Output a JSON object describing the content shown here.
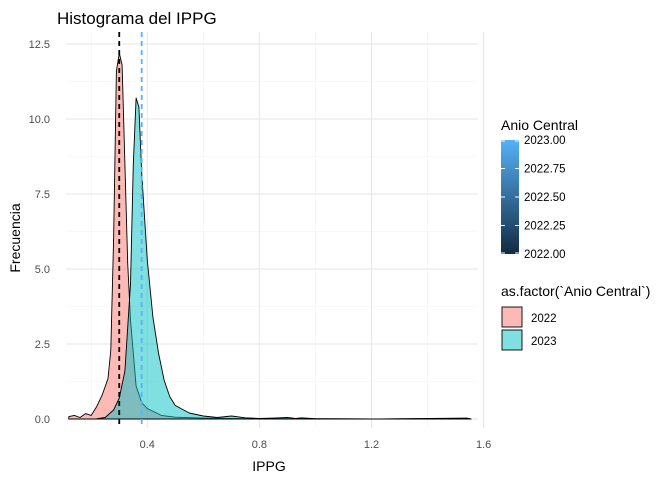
{
  "chart_data": {
    "type": "area",
    "title": "Histograma del IPPG",
    "xlabel": "IPPG",
    "ylabel": "Frecuencia",
    "xlim": [
      0.11,
      1.58
    ],
    "ylim": [
      -0.3,
      12.9
    ],
    "x_ticks": [
      0.4,
      0.8,
      1.2,
      1.6
    ],
    "x_tick_labels": [
      "0.4",
      "0.8",
      "1.2",
      "1.6"
    ],
    "y_ticks": [
      0,
      2.5,
      5,
      7.5,
      10,
      12.5
    ],
    "y_tick_labels": [
      "0.0",
      "2.5",
      "5.0",
      "7.5",
      "10.0",
      "12.5"
    ],
    "grid": true,
    "legend_position": "right",
    "series": [
      {
        "name": "2022",
        "color": "#F8766D",
        "mean_line": 0.3,
        "points": [
          [
            0.12,
            0.08
          ],
          [
            0.14,
            0.12
          ],
          [
            0.16,
            0.05
          ],
          [
            0.18,
            0.18
          ],
          [
            0.2,
            0.12
          ],
          [
            0.22,
            0.42
          ],
          [
            0.24,
            0.82
          ],
          [
            0.26,
            1.35
          ],
          [
            0.27,
            2.3
          ],
          [
            0.28,
            6.0
          ],
          [
            0.29,
            11.6
          ],
          [
            0.3,
            12.2
          ],
          [
            0.31,
            11.8
          ],
          [
            0.32,
            8.5
          ],
          [
            0.33,
            5.2
          ],
          [
            0.34,
            3.3
          ],
          [
            0.35,
            2.2
          ],
          [
            0.36,
            1.1
          ],
          [
            0.38,
            0.55
          ],
          [
            0.4,
            0.35
          ],
          [
            0.45,
            0.12
          ],
          [
            0.5,
            0.06
          ],
          [
            0.6,
            0.03
          ],
          [
            0.7,
            0.02
          ],
          [
            0.8,
            0.01
          ],
          [
            1.0,
            0.01
          ],
          [
            1.2,
            0.0
          ],
          [
            1.54,
            0.02
          ],
          [
            1.555,
            0.0
          ]
        ]
      },
      {
        "name": "2023",
        "color": "#00BFC4",
        "mean_line": 0.38,
        "points": [
          [
            0.22,
            0.01
          ],
          [
            0.25,
            0.05
          ],
          [
            0.28,
            0.3
          ],
          [
            0.3,
            0.7
          ],
          [
            0.32,
            1.6
          ],
          [
            0.34,
            4.5
          ],
          [
            0.35,
            8.5
          ],
          [
            0.36,
            10.7
          ],
          [
            0.37,
            10.4
          ],
          [
            0.38,
            8.2
          ],
          [
            0.4,
            5.3
          ],
          [
            0.42,
            3.4
          ],
          [
            0.44,
            2.2
          ],
          [
            0.46,
            1.3
          ],
          [
            0.48,
            0.75
          ],
          [
            0.5,
            0.45
          ],
          [
            0.55,
            0.2
          ],
          [
            0.6,
            0.1
          ],
          [
            0.65,
            0.05
          ],
          [
            0.7,
            0.1
          ],
          [
            0.75,
            0.04
          ],
          [
            0.8,
            0.02
          ],
          [
            0.85,
            0.03
          ],
          [
            0.9,
            0.05
          ],
          [
            0.93,
            0.02
          ],
          [
            0.95,
            0.04
          ],
          [
            1.0,
            0.01
          ],
          [
            1.2,
            0.0
          ],
          [
            1.54,
            0.03
          ],
          [
            1.555,
            0.0
          ]
        ]
      }
    ]
  },
  "legend_continuous": {
    "title": "Anio Central",
    "labels": [
      "2023.00",
      "2022.75",
      "2022.50",
      "2022.25",
      "2022.00"
    ],
    "color_low": "#132B43",
    "color_high": "#56B1F7"
  },
  "legend_discrete": {
    "title": "as.factor(`Anio Central`)",
    "items": [
      {
        "label": "2022",
        "color": "#F8766D"
      },
      {
        "label": "2023",
        "color": "#00BFC4"
      }
    ]
  }
}
